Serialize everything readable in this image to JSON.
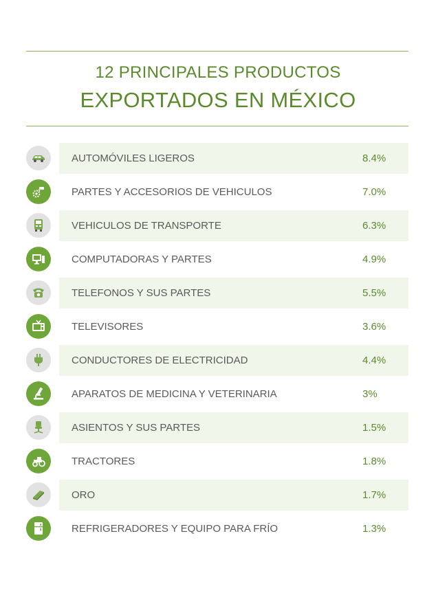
{
  "title": {
    "line1": "12 PRINCIPALES PRODUCTOS",
    "line2": "EXPORTADOS EN MÉXICO"
  },
  "items": [
    {
      "label": "AUTOMÓVILES LIGEROS",
      "value": "8.4%",
      "icon": "car-icon"
    },
    {
      "label": "PARTES Y ACCESORIOS DE VEHICULOS",
      "value": "7.0%",
      "icon": "gear-parts-icon"
    },
    {
      "label": "VEHICULOS DE TRANSPORTE",
      "value": "6.3%",
      "icon": "truck-icon"
    },
    {
      "label": "COMPUTADORAS Y PARTES",
      "value": "4.9%",
      "icon": "computer-icon"
    },
    {
      "label": "TELEFONOS Y SUS PARTES",
      "value": "5.5%",
      "icon": "telephone-icon"
    },
    {
      "label": "TELEVISORES",
      "value": "3.6%",
      "icon": "television-icon"
    },
    {
      "label": "CONDUCTORES DE ELECTRICIDAD",
      "value": "4.4%",
      "icon": "plug-icon"
    },
    {
      "label": "APARATOS DE MEDICINA Y VETERINARIA",
      "value": "3%",
      "icon": "microscope-icon"
    },
    {
      "label": "ASIENTOS Y SUS PARTES",
      "value": "1.5%",
      "icon": "office-chair-icon"
    },
    {
      "label": "TRACTORES",
      "value": "1.8%",
      "icon": "tractor-icon"
    },
    {
      "label": "ORO",
      "value": "1.7%",
      "icon": "gold-bar-icon"
    },
    {
      "label": "REFRIGERADORES Y EQUIPO PARA FRÍO",
      "value": "1.3%",
      "icon": "refrigerator-icon"
    }
  ],
  "colors": {
    "accent_green": "#6fa63a",
    "title_green": "#5b8a2d",
    "row_shade": "#f0f6ea",
    "icon_light": "#e2e2e2",
    "label_gray": "#5a5a5a"
  }
}
